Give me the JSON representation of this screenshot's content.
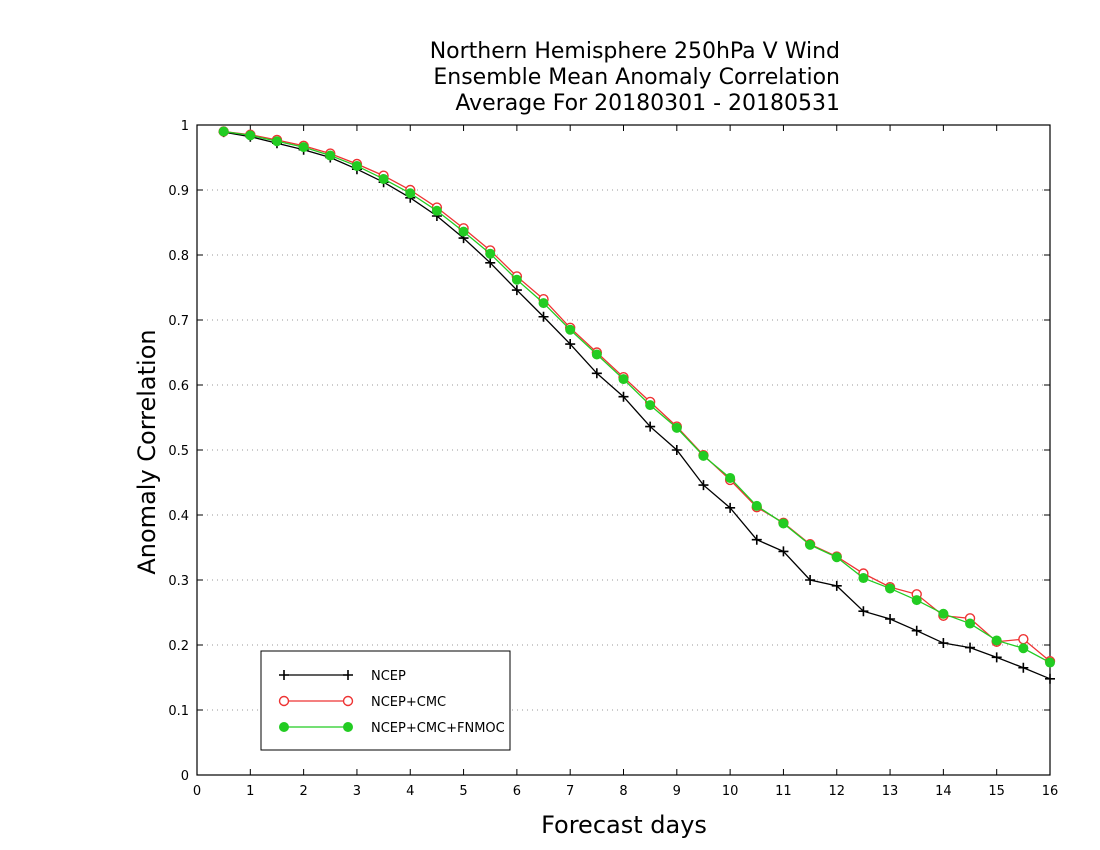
{
  "chart_data": {
    "type": "line",
    "title": [
      "Northern Hemisphere 250hPa V Wind",
      "Ensemble Mean Anomaly Correlation",
      "Average For 20180301 - 20180531"
    ],
    "xlabel": "Forecast days",
    "ylabel": "Anomaly Correlation",
    "xlim": [
      0,
      16
    ],
    "ylim": [
      0,
      1
    ],
    "xticks": [
      0,
      1,
      2,
      3,
      4,
      5,
      6,
      7,
      8,
      9,
      10,
      11,
      12,
      13,
      14,
      15,
      16
    ],
    "yticks": [
      0,
      0.1,
      0.2,
      0.3,
      0.4,
      0.5,
      0.6,
      0.7,
      0.8,
      0.9,
      1
    ],
    "grid": "horizontal dotted",
    "legend_position": "bottom-left",
    "x": [
      0.5,
      1,
      1.5,
      2,
      2.5,
      3,
      3.5,
      4,
      4.5,
      5,
      5.5,
      6,
      6.5,
      7,
      7.5,
      8,
      8.5,
      9,
      9.5,
      10,
      10.5,
      11,
      11.5,
      12,
      12.5,
      13,
      13.5,
      14,
      14.5,
      15,
      15.5,
      16
    ],
    "series": [
      {
        "name": "NCEP",
        "color": "#000000",
        "marker": "plus",
        "values": [
          0.989,
          0.982,
          0.972,
          0.962,
          0.95,
          0.932,
          0.912,
          0.888,
          0.86,
          0.826,
          0.788,
          0.746,
          0.705,
          0.663,
          0.618,
          0.582,
          0.536,
          0.5,
          0.446,
          0.411,
          0.362,
          0.344,
          0.3,
          0.291,
          0.252,
          0.24,
          0.222,
          0.203,
          0.196,
          0.181,
          0.165,
          0.148
        ]
      },
      {
        "name": "NCEP+CMC",
        "color": "#ee3333",
        "marker": "open-circle",
        "values": [
          0.99,
          0.985,
          0.977,
          0.968,
          0.956,
          0.94,
          0.922,
          0.9,
          0.873,
          0.841,
          0.807,
          0.767,
          0.732,
          0.688,
          0.65,
          0.612,
          0.574,
          0.536,
          0.492,
          0.454,
          0.412,
          0.388,
          0.355,
          0.336,
          0.31,
          0.289,
          0.278,
          0.245,
          0.241,
          0.205,
          0.209,
          0.175
        ]
      },
      {
        "name": "NCEP+CMC+FNMOC",
        "color": "#22cc22",
        "marker": "filled-circle",
        "values": [
          0.99,
          0.984,
          0.975,
          0.966,
          0.953,
          0.937,
          0.917,
          0.895,
          0.868,
          0.836,
          0.802,
          0.762,
          0.726,
          0.685,
          0.647,
          0.609,
          0.569,
          0.534,
          0.491,
          0.457,
          0.414,
          0.387,
          0.354,
          0.335,
          0.303,
          0.287,
          0.269,
          0.248,
          0.233,
          0.207,
          0.195,
          0.173
        ]
      }
    ]
  }
}
